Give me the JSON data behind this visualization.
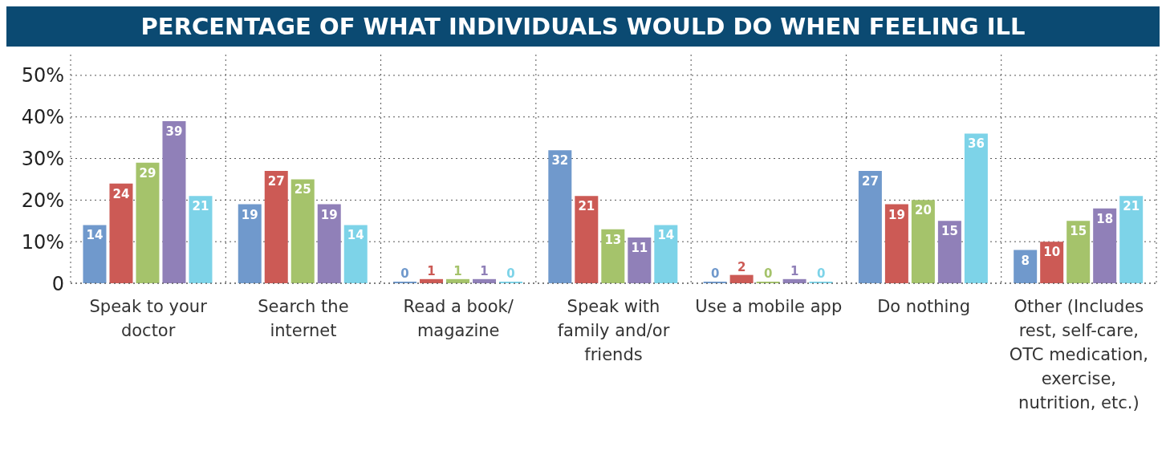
{
  "chart_data": {
    "type": "bar",
    "title": "PERCENTAGE OF WHAT INDIVIDUALS WOULD DO WHEN FEELING ILL",
    "categories": [
      "Speak to your doctor",
      "Search the internet",
      "Read a book/ magazine",
      "Speak with family and/or friends",
      "Use a mobile app",
      "Do nothing",
      "Other (Includes rest, self-care, OTC medication, exercise, nutrition, etc.)"
    ],
    "series": [
      {
        "color": "#7099cc",
        "values": [
          14,
          19,
          0,
          32,
          0,
          27,
          8
        ]
      },
      {
        "color": "#cc5a55",
        "values": [
          24,
          27,
          1,
          21,
          2,
          19,
          10
        ]
      },
      {
        "color": "#a5c36b",
        "values": [
          29,
          25,
          1,
          13,
          0,
          20,
          15
        ]
      },
      {
        "color": "#9080b8",
        "values": [
          39,
          19,
          1,
          11,
          1,
          15,
          18
        ]
      },
      {
        "color": "#7dd3e8",
        "values": [
          21,
          14,
          0,
          14,
          0,
          36,
          21
        ]
      }
    ],
    "ylim": [
      0,
      55
    ],
    "yticks": [
      {
        "value": 0,
        "label": "0"
      },
      {
        "value": 10,
        "label": "10%"
      },
      {
        "value": 20,
        "label": "20%"
      },
      {
        "value": 30,
        "label": "30%"
      },
      {
        "value": 40,
        "label": "40%"
      },
      {
        "value": 50,
        "label": "50%"
      }
    ],
    "grid": true,
    "data_labels": true
  }
}
